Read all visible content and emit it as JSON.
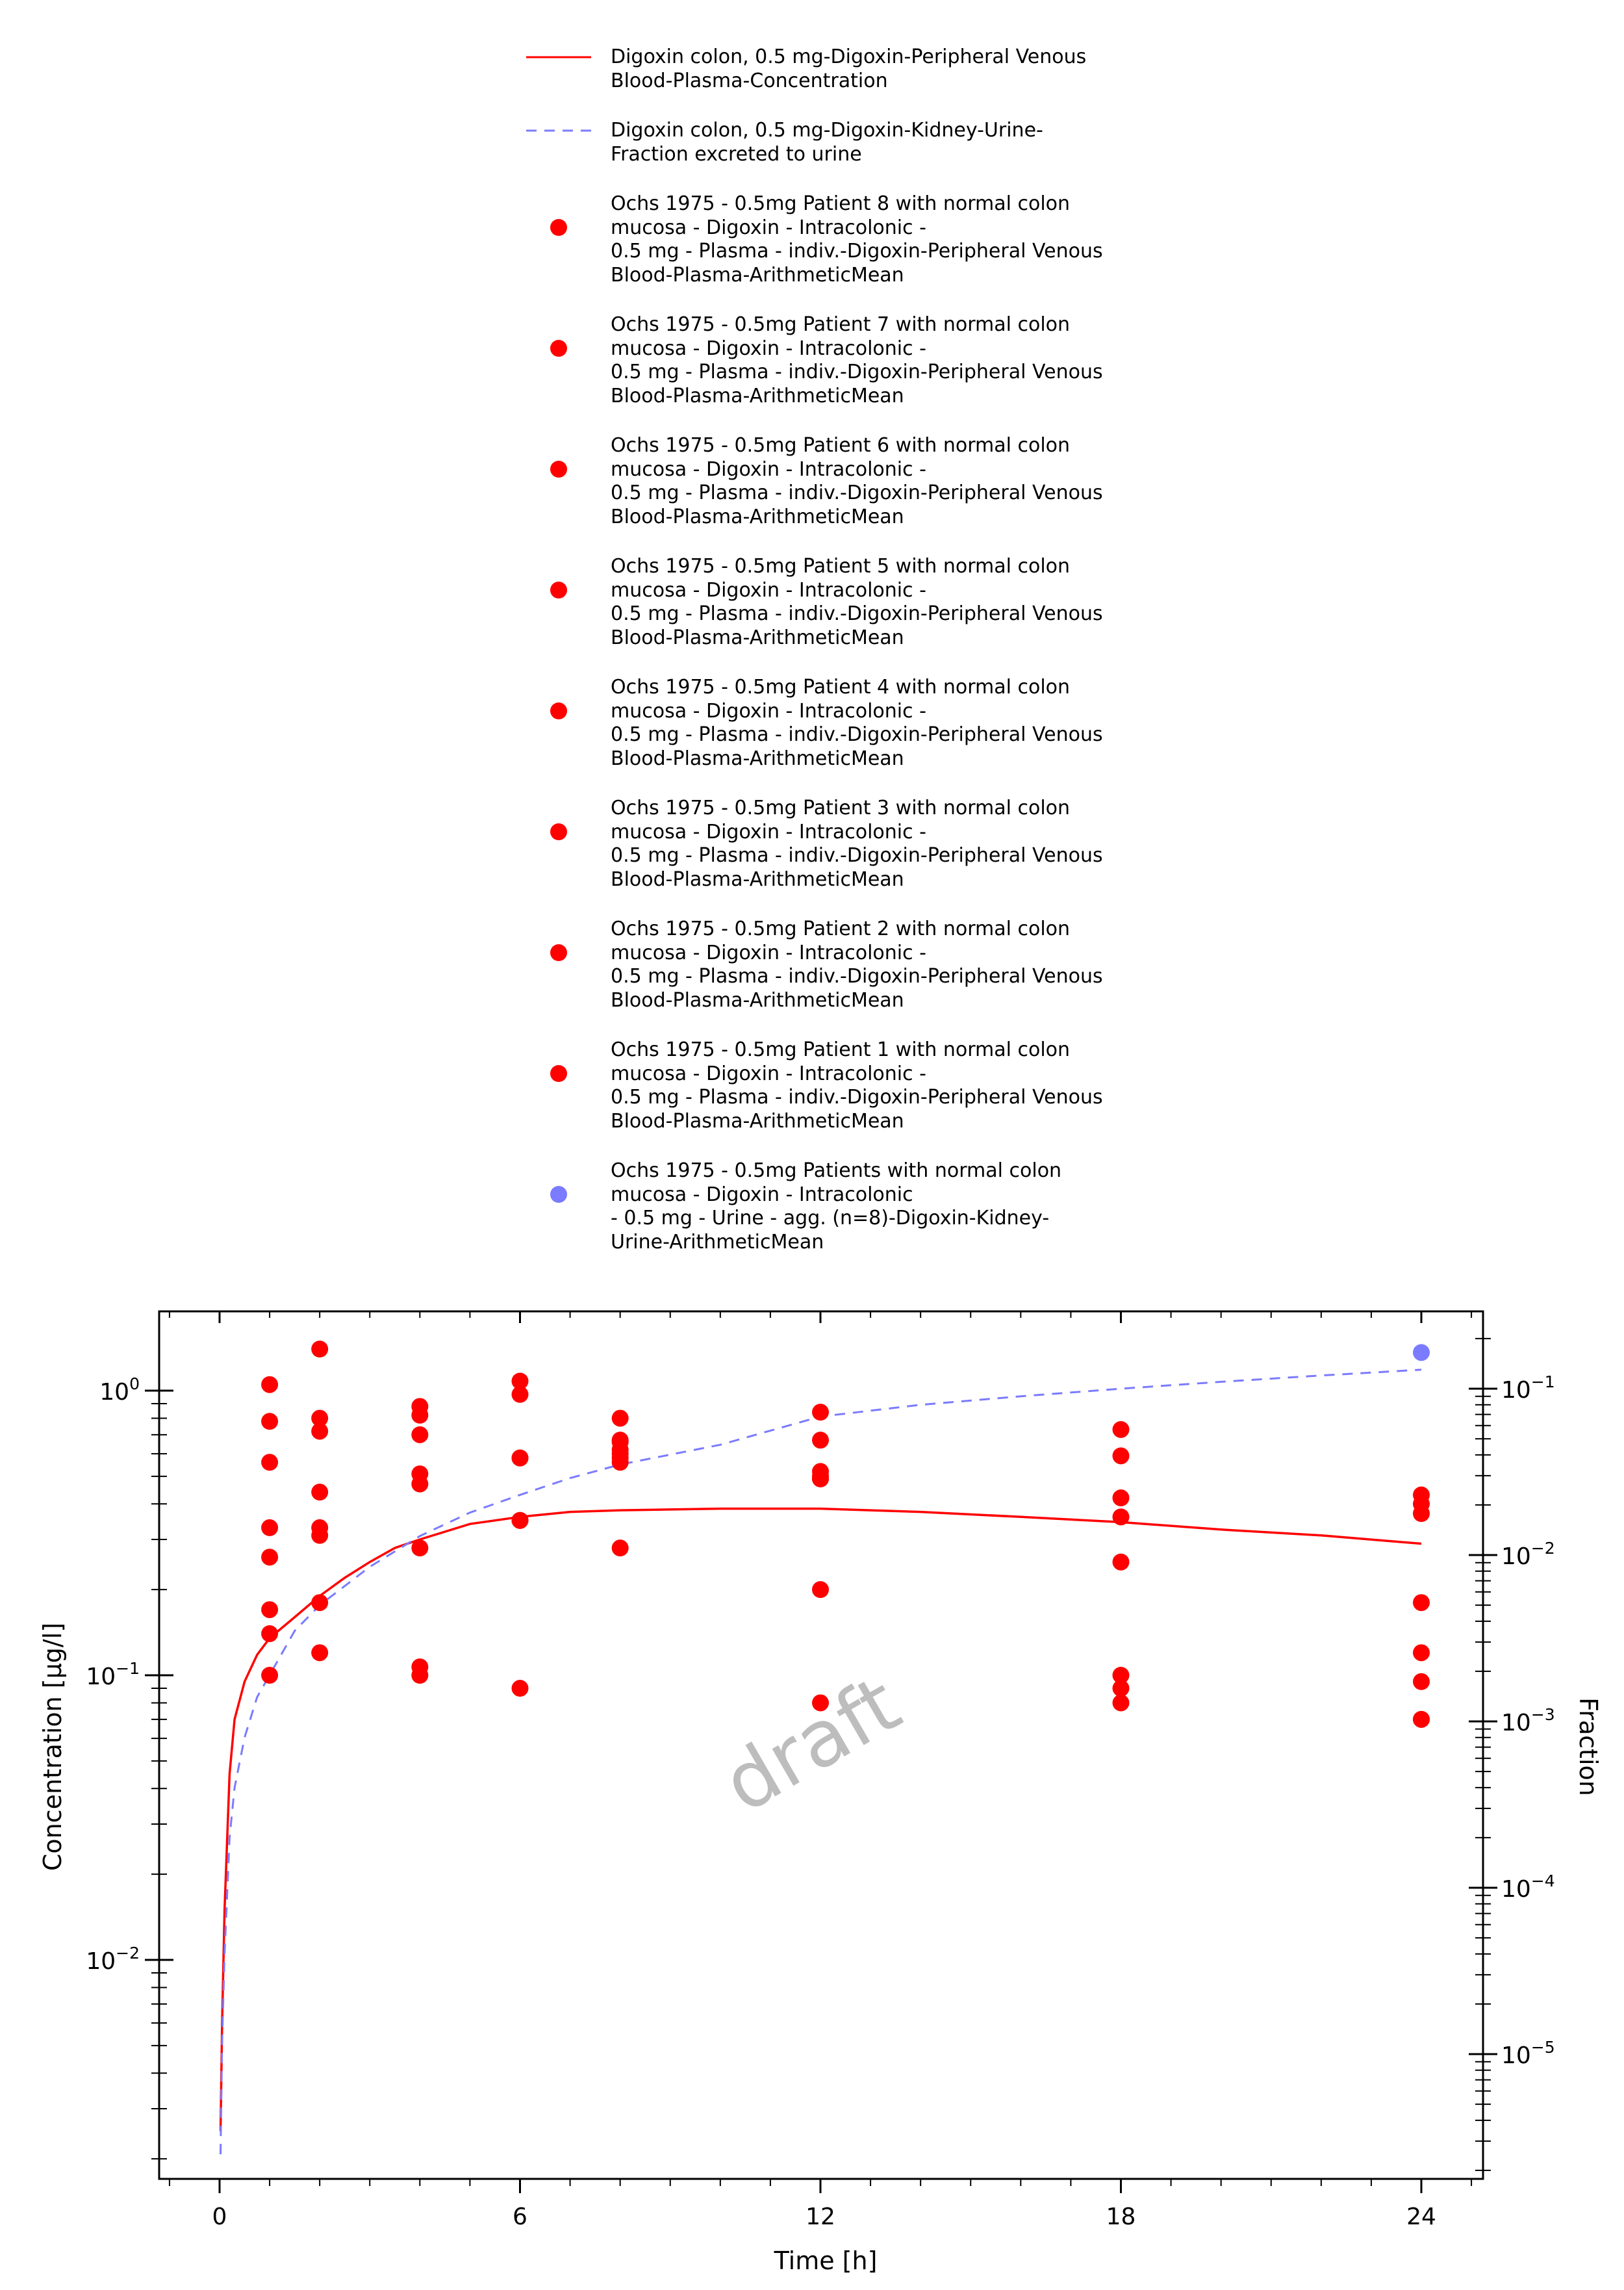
{
  "chart_data": {
    "type": "scatter",
    "xlabel": "Time [h]",
    "ylabel": "Concentration [µg/l]",
    "y2label": "Fraction",
    "watermark": "draft",
    "xlim": [
      -1,
      21.0
    ],
    "ylim": [
      0.00162,
      2.07
    ],
    "y2lim": [
      1.62e-06,
      0.311
    ],
    "yscale": "log",
    "y2scale": "log",
    "xticks": [
      0,
      6,
      12,
      18,
      24
    ],
    "xtick_labels": [
      "0",
      "6",
      "12",
      "18",
      "24"
    ],
    "yticks": [
      1,
      0.1,
      0.01
    ],
    "ytick_labels": [
      [
        "10",
        "0"
      ],
      [
        "10",
        "−1"
      ],
      [
        "10",
        "−2"
      ]
    ],
    "y2ticks": [
      0.1,
      0.01,
      0.001,
      0.0001,
      1e-05
    ],
    "y2tick_labels": [
      [
        "10",
        "−1"
      ],
      [
        "10",
        "−2"
      ],
      [
        "10",
        "−3"
      ],
      [
        "10",
        "−4"
      ],
      [
        "10",
        "−5"
      ]
    ],
    "legend_position": "above plot",
    "series": [
      {
        "name": "Digoxin colon, 0.5 mg-Digoxin-Peripheral Venous\nBlood-Plasma-Concentration",
        "kind": "line",
        "axis": "left",
        "color": "#ff0000",
        "dash": "solid",
        "x": [
          0.02,
          0.05,
          0.1,
          0.2,
          0.3,
          0.5,
          0.75,
          1,
          1.5,
          2,
          2.5,
          3,
          3.5,
          4,
          5,
          6,
          7,
          8,
          10,
          12,
          14,
          16,
          18,
          20,
          22,
          24
        ],
        "y": [
          0.0025,
          0.006,
          0.015,
          0.045,
          0.07,
          0.095,
          0.118,
          0.135,
          0.16,
          0.19,
          0.22,
          0.25,
          0.28,
          0.3,
          0.34,
          0.36,
          0.375,
          0.38,
          0.385,
          0.385,
          0.375,
          0.36,
          0.345,
          0.325,
          0.31,
          0.29
        ]
      },
      {
        "name": "Digoxin colon, 0.5 mg-Digoxin-Kidney-Urine-\nFraction excreted to urine",
        "kind": "line",
        "axis": "right",
        "color": "#7b7bff",
        "dash": "dashed",
        "x": [
          0.02,
          0.05,
          0.1,
          0.2,
          0.3,
          0.5,
          0.75,
          1,
          1.5,
          2,
          3,
          4,
          5,
          6,
          7,
          8,
          10,
          12,
          14,
          16,
          18,
          20,
          22,
          24
        ],
        "y": [
          2.5e-06,
          1.2e-05,
          4e-05,
          0.0002,
          0.0004,
          0.0008,
          0.0014,
          0.0019,
          0.0035,
          0.005,
          0.0085,
          0.013,
          0.018,
          0.023,
          0.029,
          0.035,
          0.046,
          0.068,
          0.08,
          0.09,
          0.1,
          0.11,
          0.12,
          0.13
        ]
      },
      {
        "name": "Ochs 1975 - 0.5mg Patient 8 with normal colon\nmucosa - Digoxin - Intracolonic -\n0.5 mg - Plasma - indiv.-Digoxin-Peripheral Venous\nBlood-Plasma-ArithmeticMean",
        "kind": "scatter",
        "axis": "left",
        "color": "#ff0000",
        "x": [
          1,
          2,
          4,
          6,
          8,
          12,
          18,
          24
        ],
        "y": [
          1.05,
          1.4,
          0.88,
          1.08,
          0.8,
          0.84,
          0.73,
          0.43
        ]
      },
      {
        "name": "Ochs 1975 - 0.5mg Patient 7 with normal colon\nmucosa - Digoxin - Intracolonic -\n0.5 mg - Plasma - indiv.-Digoxin-Peripheral Venous\nBlood-Plasma-ArithmeticMean",
        "kind": "scatter",
        "axis": "left",
        "color": "#ff0000",
        "x": [
          1,
          2,
          4,
          6,
          8,
          12,
          18,
          24
        ],
        "y": [
          0.78,
          0.8,
          0.82,
          0.97,
          0.66,
          0.67,
          0.59,
          0.4
        ]
      },
      {
        "name": "Ochs 1975 - 0.5mg Patient 6 with normal colon\nmucosa - Digoxin - Intracolonic -\n0.5 mg - Plasma - indiv.-Digoxin-Peripheral Venous\nBlood-Plasma-ArithmeticMean",
        "kind": "scatter",
        "axis": "left",
        "color": "#ff0000",
        "x": [
          1,
          2,
          4,
          6,
          8,
          12,
          18,
          24
        ],
        "y": [
          0.56,
          0.72,
          0.7,
          0.58,
          0.62,
          0.52,
          0.42,
          0.37
        ]
      },
      {
        "name": "Ochs 1975 - 0.5mg Patient 5 with normal colon\nmucosa - Digoxin - Intracolonic -\n0.5 mg - Plasma - indiv.-Digoxin-Peripheral Venous\nBlood-Plasma-ArithmeticMean",
        "kind": "scatter",
        "axis": "left",
        "color": "#ff0000",
        "x": [
          1,
          2,
          4,
          6,
          8,
          12,
          18,
          24
        ],
        "y": [
          0.33,
          0.44,
          0.51,
          0.35,
          0.58,
          0.49,
          0.36,
          0.18
        ]
      },
      {
        "name": "Ochs 1975 - 0.5mg Patient 4 with normal colon\nmucosa - Digoxin - Intracolonic -\n0.5 mg - Plasma - indiv.-Digoxin-Peripheral Venous\nBlood-Plasma-ArithmeticMean",
        "kind": "scatter",
        "axis": "left",
        "color": "#ff0000",
        "x": [
          1,
          2,
          4,
          6,
          8,
          12,
          18,
          24
        ],
        "y": [
          0.26,
          0.33,
          0.47,
          0.35,
          0.56,
          0.2,
          0.25,
          0.12
        ]
      },
      {
        "name": "Ochs 1975 - 0.5mg Patient 3 with normal colon\nmucosa - Digoxin - Intracolonic -\n0.5 mg - Plasma - indiv.-Digoxin-Peripheral Venous\nBlood-Plasma-ArithmeticMean",
        "kind": "scatter",
        "axis": "left",
        "color": "#ff0000",
        "x": [
          1,
          2,
          4,
          6,
          8,
          12,
          18,
          24
        ],
        "y": [
          0.17,
          0.31,
          0.28,
          0.09,
          0.28,
          0.08,
          0.1,
          0.095
        ]
      },
      {
        "name": "Ochs 1975 - 0.5mg Patient 2 with normal colon\nmucosa - Digoxin - Intracolonic -\n0.5 mg - Plasma - indiv.-Digoxin-Peripheral Venous\nBlood-Plasma-ArithmeticMean",
        "kind": "scatter",
        "axis": "left",
        "color": "#ff0000",
        "x": [
          1,
          2,
          4,
          6,
          8,
          12,
          18,
          24
        ],
        "y": [
          0.14,
          0.18,
          0.107,
          0.35,
          0.67,
          0.5,
          0.08,
          0.07
        ]
      },
      {
        "name": "Ochs 1975 - 0.5mg Patient 1 with normal colon\nmucosa - Digoxin - Intracolonic -\n0.5 mg - Plasma - indiv.-Digoxin-Peripheral Venous\nBlood-Plasma-ArithmeticMean",
        "kind": "scatter",
        "axis": "left",
        "color": "#ff0000",
        "x": [
          1,
          2,
          4,
          6,
          8,
          12,
          18,
          24
        ],
        "y": [
          0.1,
          0.12,
          0.1,
          0.58,
          0.6,
          0.49,
          0.09,
          0.07
        ]
      },
      {
        "name": "Ochs 1975 - 0.5mg Patients with normal colon\nmucosa - Digoxin - Intracolonic\n- 0.5 mg - Urine - agg. (n=8)-Digoxin-Kidney-\nUrine-ArithmeticMean",
        "kind": "scatter",
        "axis": "right",
        "color": "#7b7bff",
        "x": [
          24
        ],
        "y": [
          0.165
        ]
      }
    ]
  }
}
